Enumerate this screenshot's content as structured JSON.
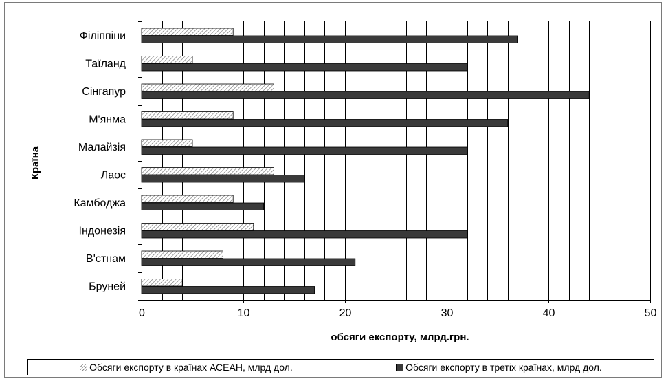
{
  "chart_data": {
    "type": "bar",
    "orientation": "horizontal",
    "title": "",
    "xlabel": "обсяги експорту, млрд.грн.",
    "ylabel": "Країна",
    "xlim": [
      0,
      50
    ],
    "xticks": [
      0,
      10,
      20,
      30,
      40,
      50
    ],
    "grid": "vertical",
    "legend_position": "bottom",
    "categories": [
      "Філіппіни",
      "Таїланд",
      "Сінгапур",
      "М'янма",
      "Малайзія",
      "Лаос",
      "Камбоджа",
      "Індонезія",
      "В'єтнам",
      "Бруней"
    ],
    "series": [
      {
        "name": "Обсяги експорту в країнах АСЕАН, млрд дол.",
        "values": [
          9,
          5,
          13,
          9,
          5,
          13,
          9,
          11,
          8,
          4
        ],
        "color": "#ffffff",
        "pattern": "hatched"
      },
      {
        "name": "Обсяги експорту в  третіх країнах, млрд дол.",
        "values": [
          37,
          32,
          44,
          36,
          32,
          16,
          12,
          32,
          21,
          17
        ],
        "color": "#3a3a3a",
        "pattern": "solid"
      }
    ]
  }
}
